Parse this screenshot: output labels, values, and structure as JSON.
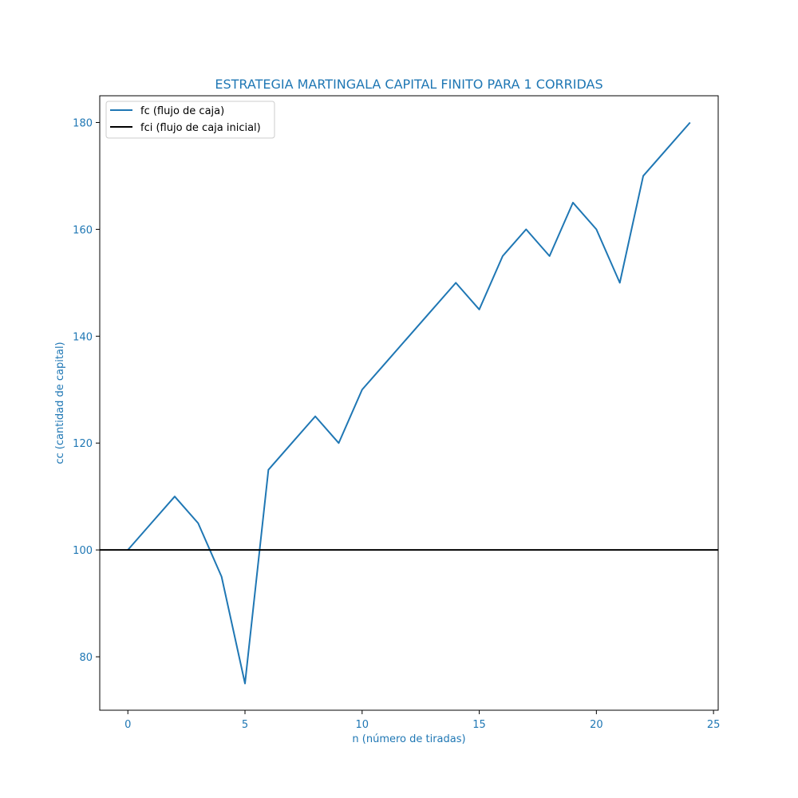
{
  "chart_data": {
    "type": "line",
    "title": "ESTRATEGIA MARTINGALA CAPITAL FINITO PARA 1 CORRIDAS",
    "xlabel": "n (número de tiradas)",
    "ylabel": "cc (cantidad de capital)",
    "xlim": [
      -1.2,
      25.2
    ],
    "ylim": [
      70,
      185
    ],
    "xticks": [
      0,
      5,
      10,
      15,
      20,
      25
    ],
    "yticks": [
      80,
      100,
      120,
      140,
      160,
      180
    ],
    "xtick_labels": [
      "0",
      "5",
      "10",
      "15",
      "20",
      "25"
    ],
    "ytick_labels": [
      "80",
      "100",
      "120",
      "140",
      "160",
      "180"
    ],
    "grid": false,
    "legend_position": "top-left",
    "label_color": "#1f77b4",
    "series": [
      {
        "name": "fc (flujo de caja)",
        "color": "#1f77b4",
        "x": [
          0,
          1,
          2,
          3,
          4,
          5,
          6,
          7,
          8,
          9,
          10,
          11,
          12,
          13,
          14,
          15,
          16,
          17,
          18,
          19,
          20,
          21,
          22,
          23,
          24
        ],
        "y": [
          100,
          105,
          110,
          105,
          95,
          75,
          115,
          120,
          125,
          120,
          130,
          135,
          140,
          145,
          150,
          145,
          155,
          160,
          155,
          165,
          160,
          150,
          170,
          175,
          180
        ]
      }
    ],
    "hlines": [
      {
        "name": "fci (flujo de caja inicial)",
        "color": "#000000",
        "y": 100
      }
    ]
  }
}
